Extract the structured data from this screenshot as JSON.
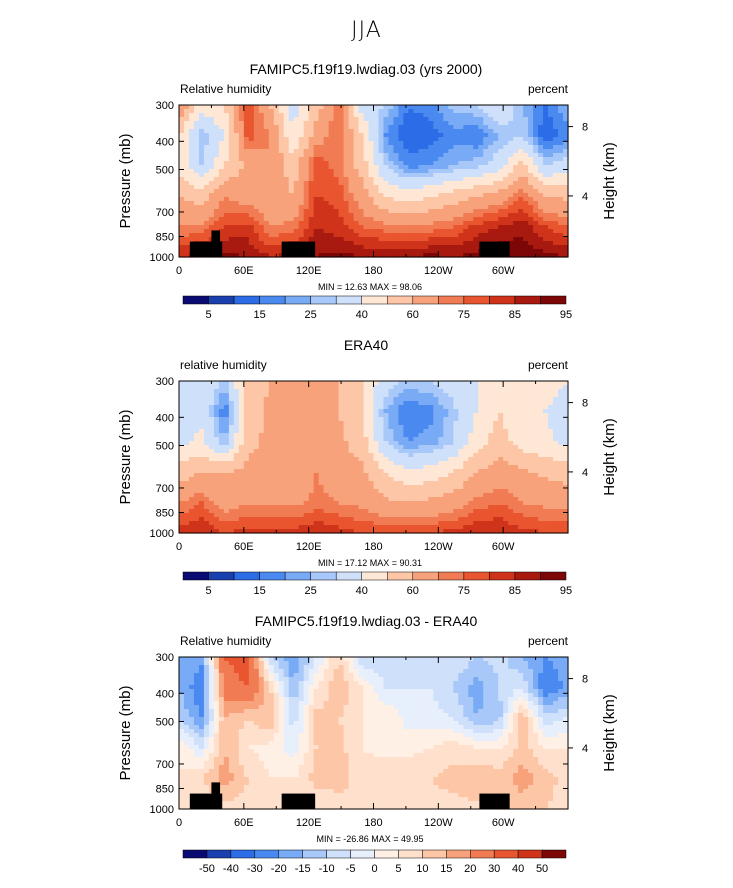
{
  "page": {
    "suptitle": "JJA"
  },
  "colors": {
    "abs_scale": [
      "#0a0a73",
      "#1a3fae",
      "#2c6ce6",
      "#4a8af0",
      "#78aaf5",
      "#a8c8fa",
      "#cfe0fb",
      "#ffe7d6",
      "#fcc6a7",
      "#f8a27b",
      "#f17b53",
      "#e8552f",
      "#cf341b",
      "#a8190f",
      "#7d0707"
    ],
    "diff_scale": [
      "#0a0a73",
      "#1a3fae",
      "#2c6ce6",
      "#4a8af0",
      "#78aaf5",
      "#a8c8fa",
      "#cfe0fb",
      "#e7effd",
      "#fff0e6",
      "#ffe0cd",
      "#fcc6a7",
      "#f8a27b",
      "#f17b53",
      "#e8552f",
      "#cf341b",
      "#7d0707"
    ],
    "land": "#000000"
  },
  "panels": [
    {
      "title": "FAMIPC5.f19f19.lwdiag.03 (yrs 2000)",
      "left_label": "Relative humidity",
      "right_label": "percent",
      "ylabel": "Pressure (mb)",
      "ylabel_right": "Height (km)",
      "stats": "MIN =   12.63   MAX =   98.06",
      "colorbar_labels": [
        "5",
        "15",
        "25",
        "40",
        "60",
        "75",
        "85",
        "95"
      ],
      "scale": "abs"
    },
    {
      "title": "ERA40",
      "left_label": "relative humidity",
      "right_label": "percent",
      "ylabel": "Pressure (mb)",
      "ylabel_right": "Height (km)",
      "stats": "MIN =   17.12   MAX =   90.31",
      "colorbar_labels": [
        "5",
        "15",
        "25",
        "40",
        "60",
        "75",
        "85",
        "95"
      ],
      "scale": "abs"
    },
    {
      "title": "FAMIPC5.f19f19.lwdiag.03 - ERA40",
      "left_label": "Relative humidity",
      "right_label": "percent",
      "ylabel": "Pressure (mb)",
      "ylabel_right": "Height (km)",
      "stats": "MIN =  -26.86   MAX =   49.95",
      "colorbar_labels": [
        "-50",
        "-40",
        "-30",
        "-20",
        "-15",
        "-10",
        "-5",
        "0",
        "5",
        "10",
        "15",
        "20",
        "30",
        "40",
        "50"
      ],
      "scale": "diff"
    }
  ],
  "chart_data": [
    {
      "type": "heatmap",
      "title": "FAMIPC5.f19f19.lwdiag.03 (yrs 2000)",
      "xlabel": "",
      "ylabel": "Pressure (mb)",
      "x_ticks": [
        "0",
        "60E",
        "120E",
        "180",
        "120W",
        "60W"
      ],
      "y_ticks": [
        "300",
        "400",
        "500",
        "700",
        "850",
        "1000"
      ],
      "right_ticks": [
        "8",
        "4"
      ],
      "xlim": [
        0,
        360
      ],
      "ylim": [
        1000,
        300
      ],
      "y_scale": "log",
      "levels": [
        5,
        10,
        15,
        20,
        25,
        30,
        40,
        50,
        60,
        70,
        75,
        80,
        85,
        90,
        95
      ],
      "min": 12.63,
      "max": 98.06,
      "field": [
        [
          70,
          45,
          50,
          82,
          60,
          35,
          55,
          75,
          35,
          30,
          15,
          18,
          28,
          30,
          40,
          25,
          15,
          25
        ],
        [
          50,
          25,
          40,
          78,
          70,
          40,
          65,
          75,
          50,
          20,
          10,
          12,
          18,
          15,
          25,
          30,
          10,
          18
        ],
        [
          45,
          30,
          50,
          62,
          70,
          55,
          80,
          72,
          55,
          30,
          18,
          20,
          25,
          28,
          35,
          55,
          30,
          35
        ],
        [
          60,
          55,
          70,
          65,
          62,
          60,
          80,
          78,
          65,
          50,
          45,
          50,
          55,
          60,
          65,
          75,
          60,
          58
        ],
        [
          70,
          72,
          80,
          82,
          70,
          72,
          85,
          82,
          75,
          72,
          70,
          72,
          75,
          82,
          85,
          88,
          80,
          75
        ],
        [
          85,
          88,
          92,
          90,
          85,
          88,
          90,
          92,
          90,
          90,
          90,
          92,
          90,
          92,
          95,
          95,
          92,
          90
        ]
      ]
    },
    {
      "type": "heatmap",
      "title": "ERA40",
      "xlabel": "",
      "ylabel": "Pressure (mb)",
      "x_ticks": [
        "0",
        "60E",
        "120E",
        "180",
        "120W",
        "60W"
      ],
      "y_ticks": [
        "300",
        "400",
        "500",
        "700",
        "850",
        "1000"
      ],
      "right_ticks": [
        "8",
        "4"
      ],
      "xlim": [
        0,
        360
      ],
      "ylim": [
        1000,
        300
      ],
      "y_scale": "log",
      "levels": [
        5,
        10,
        15,
        20,
        25,
        30,
        40,
        50,
        60,
        70,
        75,
        80,
        85,
        90,
        95
      ],
      "min": 17.12,
      "max": 90.31,
      "field": [
        [
          40,
          40,
          28,
          55,
          60,
          60,
          65,
          60,
          50,
          35,
          28,
          30,
          35,
          40,
          50,
          40,
          45,
          40
        ],
        [
          35,
          38,
          15,
          55,
          62,
          60,
          65,
          60,
          50,
          25,
          15,
          18,
          28,
          40,
          50,
          40,
          40,
          35
        ],
        [
          38,
          42,
          25,
          58,
          62,
          62,
          70,
          62,
          55,
          30,
          20,
          22,
          30,
          45,
          55,
          45,
          42,
          38
        ],
        [
          55,
          60,
          60,
          62,
          62,
          62,
          70,
          65,
          62,
          50,
          42,
          45,
          50,
          60,
          65,
          62,
          58,
          55
        ],
        [
          70,
          75,
          65,
          70,
          68,
          68,
          72,
          70,
          68,
          62,
          60,
          62,
          65,
          72,
          75,
          70,
          68,
          68
        ],
        [
          82,
          85,
          80,
          82,
          82,
          82,
          85,
          82,
          80,
          80,
          80,
          80,
          82,
          85,
          85,
          82,
          80,
          80
        ]
      ]
    },
    {
      "type": "heatmap",
      "title": "FAMIPC5.f19f19.lwdiag.03 - ERA40",
      "xlabel": "",
      "ylabel": "Pressure (mb)",
      "x_ticks": [
        "0",
        "60E",
        "120E",
        "180",
        "120W",
        "60W"
      ],
      "y_ticks": [
        "300",
        "400",
        "500",
        "700",
        "850",
        "1000"
      ],
      "right_ticks": [
        "8",
        "4"
      ],
      "xlim": [
        0,
        360
      ],
      "ylim": [
        1000,
        300
      ],
      "y_scale": "log",
      "levels": [
        -50,
        -40,
        -30,
        -20,
        -15,
        -10,
        -5,
        0,
        5,
        10,
        15,
        20,
        30,
        40,
        50
      ],
      "min": -26.86,
      "max": 49.95,
      "field": [
        [
          -15,
          -18,
          30,
          35,
          -10,
          -20,
          -5,
          10,
          -10,
          -8,
          -10,
          -5,
          -5,
          -10,
          -8,
          -15,
          -20,
          -18
        ],
        [
          -15,
          -25,
          25,
          30,
          10,
          -15,
          5,
          15,
          5,
          -5,
          -5,
          -5,
          -10,
          -18,
          -10,
          -5,
          -25,
          -18
        ],
        [
          -10,
          -20,
          15,
          10,
          15,
          -8,
          12,
          10,
          5,
          5,
          -2,
          -3,
          -5,
          -15,
          -12,
          15,
          -8,
          -5
        ],
        [
          5,
          -5,
          15,
          5,
          3,
          -3,
          10,
          12,
          5,
          3,
          3,
          5,
          8,
          5,
          5,
          12,
          5,
          5
        ],
        [
          5,
          10,
          18,
          10,
          5,
          5,
          12,
          12,
          8,
          10,
          10,
          10,
          12,
          15,
          12,
          18,
          12,
          8
        ],
        [
          5,
          5,
          8,
          8,
          5,
          5,
          5,
          8,
          8,
          8,
          8,
          8,
          8,
          8,
          10,
          12,
          10,
          8
        ]
      ]
    }
  ]
}
